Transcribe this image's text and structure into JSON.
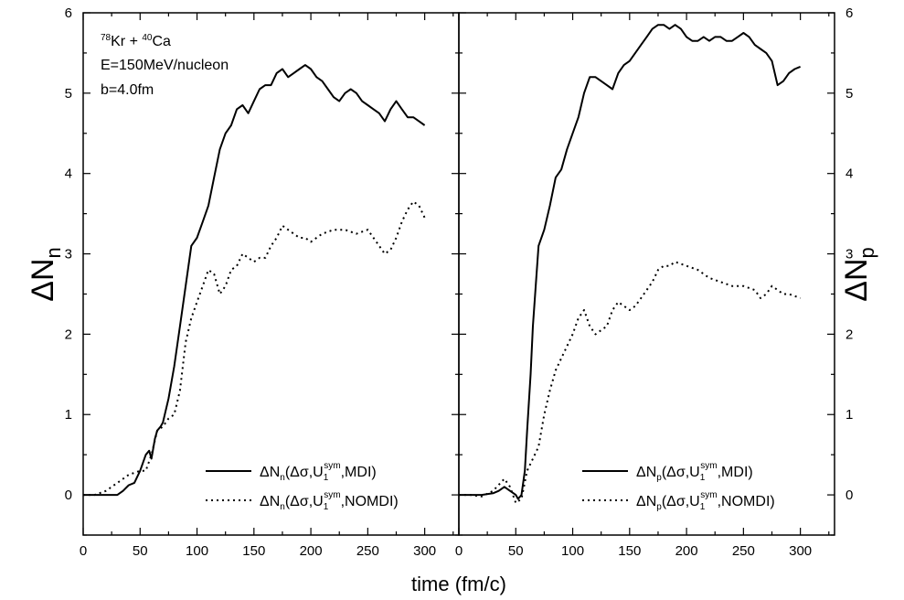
{
  "xlabel": "time (fm/c)",
  "annotation": {
    "reaction": {
      "a1": "78",
      "e1": "Kr + ",
      "a2": "40",
      "e2": "Ca"
    },
    "energy": "E=150MeV/nucleon",
    "impact": "b=4.0fm"
  },
  "chart_data": [
    {
      "type": "line",
      "panel": "left",
      "ylabel": {
        "prefix": "ΔN",
        "sub": "n"
      },
      "xlim": [
        0,
        330
      ],
      "ylim": [
        -0.5,
        6
      ],
      "xticks": [
        "0",
        "50",
        "100",
        "150",
        "200",
        "250",
        "300"
      ],
      "yticks": [
        "0",
        "1",
        "2",
        "3",
        "4",
        "5",
        "6"
      ],
      "legend": [
        {
          "prefix": "ΔN",
          "sub": "n",
          "mid": "(Δσ,U",
          "sub1": "1",
          "sup": "sym",
          "tail": ",MDI)"
        },
        {
          "prefix": "ΔN",
          "sub": "n",
          "mid": "(Δσ,U",
          "sub1": "1",
          "sup": "sym",
          "tail": ",NOMDI)"
        }
      ],
      "series": [
        {
          "style": "solid",
          "x": [
            0,
            10,
            20,
            30,
            35,
            40,
            45,
            50,
            55,
            58,
            60,
            63,
            65,
            68,
            70,
            75,
            80,
            85,
            90,
            95,
            100,
            105,
            110,
            115,
            120,
            125,
            130,
            135,
            140,
            145,
            150,
            155,
            160,
            165,
            170,
            175,
            180,
            185,
            190,
            195,
            200,
            205,
            210,
            215,
            220,
            225,
            230,
            235,
            240,
            245,
            250,
            255,
            260,
            265,
            270,
            275,
            280,
            285,
            290,
            295,
            300
          ],
          "y": [
            0,
            0,
            0,
            0,
            0.05,
            0.12,
            0.15,
            0.3,
            0.5,
            0.55,
            0.45,
            0.7,
            0.8,
            0.85,
            0.9,
            1.2,
            1.6,
            2.1,
            2.6,
            3.1,
            3.2,
            3.4,
            3.6,
            3.95,
            4.3,
            4.5,
            4.6,
            4.8,
            4.85,
            4.75,
            4.9,
            5.05,
            5.1,
            5.1,
            5.25,
            5.3,
            5.2,
            5.25,
            5.3,
            5.35,
            5.3,
            5.2,
            5.15,
            5.05,
            4.95,
            4.9,
            5.0,
            5.05,
            5.0,
            4.9,
            4.85,
            4.8,
            4.75,
            4.65,
            4.8,
            4.9,
            4.8,
            4.7,
            4.7,
            4.65,
            4.6
          ]
        },
        {
          "style": "dotted",
          "x": [
            0,
            10,
            20,
            30,
            40,
            50,
            55,
            60,
            65,
            70,
            75,
            80,
            85,
            90,
            95,
            100,
            105,
            110,
            115,
            120,
            125,
            130,
            135,
            140,
            145,
            150,
            155,
            160,
            165,
            170,
            175,
            180,
            185,
            190,
            195,
            200,
            205,
            210,
            220,
            230,
            240,
            250,
            260,
            265,
            270,
            275,
            280,
            285,
            290,
            295,
            300
          ],
          "y": [
            0,
            0,
            0.05,
            0.15,
            0.25,
            0.3,
            0.3,
            0.5,
            0.8,
            0.85,
            0.95,
            1.0,
            1.3,
            1.9,
            2.2,
            2.4,
            2.6,
            2.8,
            2.75,
            2.5,
            2.6,
            2.8,
            2.85,
            3.0,
            2.95,
            2.9,
            2.95,
            2.95,
            3.1,
            3.2,
            3.35,
            3.3,
            3.25,
            3.2,
            3.2,
            3.15,
            3.2,
            3.25,
            3.3,
            3.3,
            3.25,
            3.3,
            3.1,
            3.0,
            3.05,
            3.2,
            3.4,
            3.55,
            3.65,
            3.6,
            3.45
          ]
        }
      ]
    },
    {
      "type": "line",
      "panel": "right",
      "ylabel": {
        "prefix": "ΔN",
        "sub": "p"
      },
      "xlim": [
        0,
        330
      ],
      "ylim": [
        -0.5,
        6
      ],
      "xticks": [
        "0",
        "50",
        "100",
        "150",
        "200",
        "250",
        "300"
      ],
      "yticks": [
        "0",
        "1",
        "2",
        "3",
        "4",
        "5",
        "6"
      ],
      "legend": [
        {
          "prefix": "ΔN",
          "sub": "p",
          "mid": "(Δσ,U",
          "sub1": "1",
          "sup": "sym",
          "tail": ",MDI)"
        },
        {
          "prefix": "ΔN",
          "sub": "p",
          "mid": "(Δσ,U",
          "sub1": "1",
          "sup": "sym",
          "tail": ",NOMDI)"
        }
      ],
      "series": [
        {
          "style": "solid",
          "x": [
            0,
            10,
            20,
            30,
            35,
            40,
            45,
            50,
            52,
            55,
            58,
            60,
            63,
            65,
            68,
            70,
            75,
            80,
            85,
            90,
            95,
            100,
            105,
            110,
            115,
            120,
            125,
            130,
            135,
            140,
            145,
            150,
            155,
            160,
            165,
            170,
            175,
            180,
            185,
            190,
            195,
            200,
            205,
            210,
            215,
            220,
            225,
            230,
            235,
            240,
            245,
            250,
            255,
            260,
            265,
            270,
            275,
            280,
            285,
            290,
            295,
            300
          ],
          "y": [
            0,
            0,
            0,
            0.02,
            0.05,
            0.1,
            0.05,
            0.0,
            -0.05,
            0.0,
            0.3,
            0.8,
            1.5,
            2.1,
            2.7,
            3.1,
            3.3,
            3.6,
            3.95,
            4.05,
            4.3,
            4.5,
            4.7,
            5.0,
            5.2,
            5.2,
            5.15,
            5.1,
            5.05,
            5.25,
            5.35,
            5.4,
            5.5,
            5.6,
            5.7,
            5.8,
            5.85,
            5.85,
            5.8,
            5.85,
            5.8,
            5.7,
            5.65,
            5.65,
            5.7,
            5.65,
            5.7,
            5.7,
            5.65,
            5.65,
            5.7,
            5.75,
            5.7,
            5.6,
            5.55,
            5.5,
            5.4,
            5.1,
            5.15,
            5.25,
            5.3,
            5.33
          ]
        },
        {
          "style": "dotted",
          "x": [
            0,
            10,
            20,
            30,
            40,
            45,
            50,
            55,
            60,
            65,
            70,
            75,
            80,
            85,
            90,
            95,
            100,
            105,
            110,
            115,
            120,
            125,
            130,
            135,
            140,
            145,
            150,
            155,
            160,
            165,
            170,
            175,
            180,
            185,
            190,
            200,
            210,
            220,
            230,
            240,
            250,
            260,
            265,
            270,
            275,
            280,
            285,
            290,
            300
          ],
          "y": [
            0,
            0,
            -0.02,
            0.05,
            0.2,
            0.1,
            -0.1,
            -0.05,
            0.3,
            0.45,
            0.6,
            1.0,
            1.3,
            1.55,
            1.7,
            1.85,
            2.0,
            2.2,
            2.3,
            2.1,
            2.0,
            2.05,
            2.1,
            2.3,
            2.4,
            2.35,
            2.3,
            2.35,
            2.45,
            2.55,
            2.65,
            2.8,
            2.85,
            2.85,
            2.9,
            2.85,
            2.8,
            2.7,
            2.65,
            2.6,
            2.6,
            2.55,
            2.45,
            2.5,
            2.6,
            2.55,
            2.5,
            2.5,
            2.45
          ]
        }
      ]
    }
  ]
}
